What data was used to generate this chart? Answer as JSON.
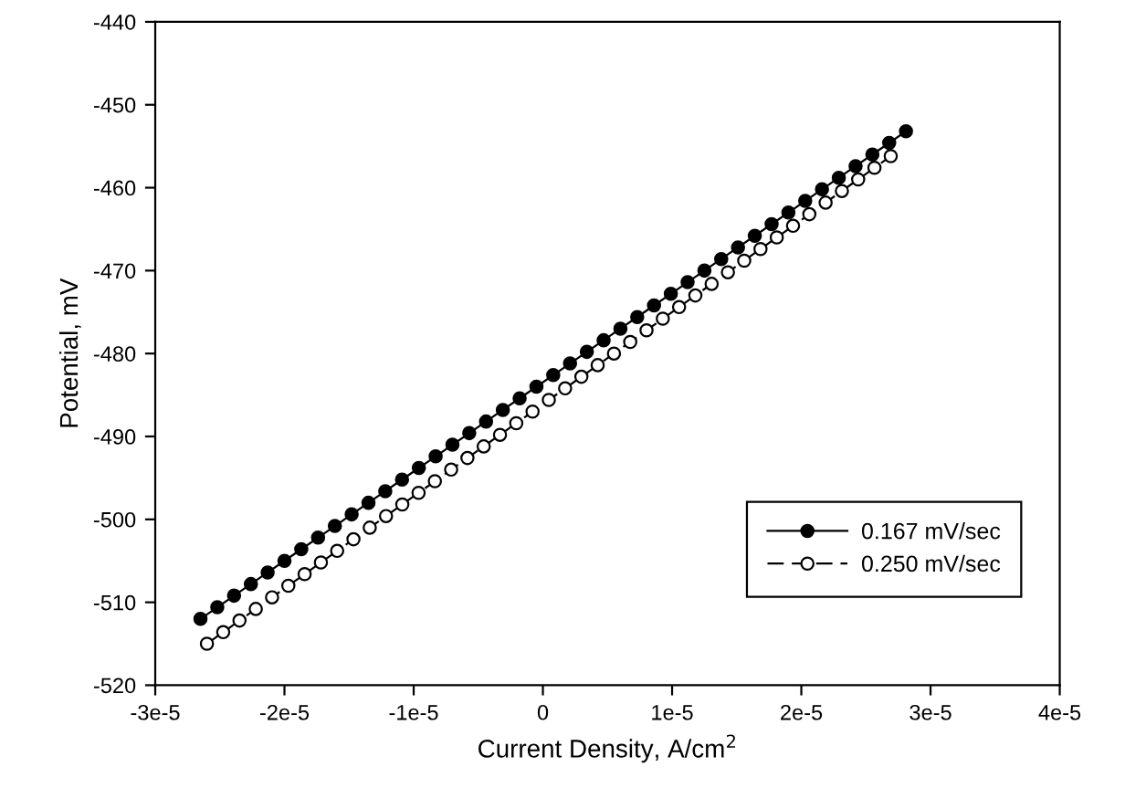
{
  "chart_data": {
    "type": "line",
    "xlabel": "Current Density, A/cm$^{2}$",
    "ylabel": "Potential, mV",
    "xlim": [
      -3e-05,
      4e-05
    ],
    "xticks": [
      {
        "value": -3e-05,
        "label": "-3e-5"
      },
      {
        "value": -2e-05,
        "label": "-2e-5"
      },
      {
        "value": -1e-05,
        "label": "-1e-5"
      },
      0,
      {
        "value": 1e-05,
        "label": "1e-5"
      },
      {
        "value": 2e-05,
        "label": "2e-5"
      },
      {
        "value": 3e-05,
        "label": "3e-5"
      },
      {
        "value": 4e-05,
        "label": "4e-5"
      }
    ],
    "ylim": [
      -520,
      -440
    ],
    "yticks": [
      -520,
      -510,
      -500,
      -490,
      -480,
      -470,
      -460,
      -450,
      -440
    ],
    "grid": false,
    "legend": "lower right",
    "marker": "circle",
    "series": [
      {
        "name": "0.167 mV/sec",
        "color": "#000000",
        "line_style": "solid",
        "x": [
          -2.65e-05,
          -2.52e-05,
          -2.39e-05,
          -2.26e-05,
          -2.13e-05,
          -2e-05,
          -1.87e-05,
          -1.74e-05,
          -1.61e-05,
          -1.48e-05,
          -1.35e-05,
          -1.22e-05,
          -1.09e-05,
          -9.6e-06,
          -8.3e-06,
          -7e-06,
          -5.7e-06,
          -4.4e-06,
          -3.1e-06,
          -1.8e-06,
          -5e-07,
          8e-07,
          2.1e-06,
          3.4e-06,
          4.7e-06,
          6e-06,
          7.3e-06,
          8.6e-06,
          9.9e-06,
          1.12e-05,
          1.25e-05,
          1.38e-05,
          1.51e-05,
          1.64e-05,
          1.77e-05,
          1.9e-05,
          2.03e-05,
          2.16e-05,
          2.29e-05,
          2.42e-05,
          2.55e-05,
          2.68e-05,
          2.81e-05
        ],
        "values": [
          -512,
          -510.6,
          -509.2,
          -507.8,
          -506.4,
          -505,
          -503.6,
          -502.2,
          -500.8,
          -499.4,
          -498,
          -496.6,
          -495.2,
          -493.8,
          -492.4,
          -491,
          -489.6,
          -488.2,
          -486.8,
          -485.4,
          -484,
          -482.6,
          -481.2,
          -479.8,
          -478.4,
          -477,
          -475.6,
          -474.2,
          -472.8,
          -471.4,
          -470,
          -468.6,
          -467.2,
          -465.8,
          -464.4,
          -463,
          -461.6,
          -460.2,
          -458.8,
          -457.4,
          -456,
          -454.6,
          -453.2
        ]
      },
      {
        "name": "0.250 mV/sec",
        "color": "#ffffff",
        "line_style": "dashed",
        "x": [
          -2.6e-05,
          -2.474e-05,
          -2.348e-05,
          -2.222e-05,
          -2.096e-05,
          -1.97e-05,
          -1.844e-05,
          -1.718e-05,
          -1.592e-05,
          -1.466e-05,
          -1.34e-05,
          -1.214e-05,
          -1.088e-05,
          -9.62e-06,
          -8.36e-06,
          -7.1e-06,
          -5.84e-06,
          -4.58e-06,
          -3.32e-06,
          -2.06e-06,
          -8e-07,
          4.6e-07,
          1.72e-06,
          2.98e-06,
          4.24e-06,
          5.5e-06,
          6.76e-06,
          8.02e-06,
          9.28e-06,
          1.054e-05,
          1.18e-05,
          1.306e-05,
          1.432e-05,
          1.558e-05,
          1.684e-05,
          1.81e-05,
          1.936e-05,
          2.062e-05,
          2.188e-05,
          2.314e-05,
          2.44e-05,
          2.566e-05,
          2.692e-05
        ],
        "values": [
          -515,
          -513.6,
          -512.2,
          -510.8,
          -509.4,
          -508,
          -506.6,
          -505.2,
          -503.8,
          -502.4,
          -501,
          -499.6,
          -498.2,
          -496.8,
          -495.4,
          -494,
          -492.6,
          -491.2,
          -489.8,
          -488.4,
          -487,
          -485.6,
          -484.2,
          -482.8,
          -481.4,
          -480,
          -478.6,
          -477.2,
          -475.8,
          -474.4,
          -473,
          -471.6,
          -470.2,
          -468.8,
          -467.4,
          -466,
          -464.6,
          -463.2,
          -461.8,
          -460.4,
          -459,
          -457.6,
          -456.2
        ]
      }
    ]
  }
}
